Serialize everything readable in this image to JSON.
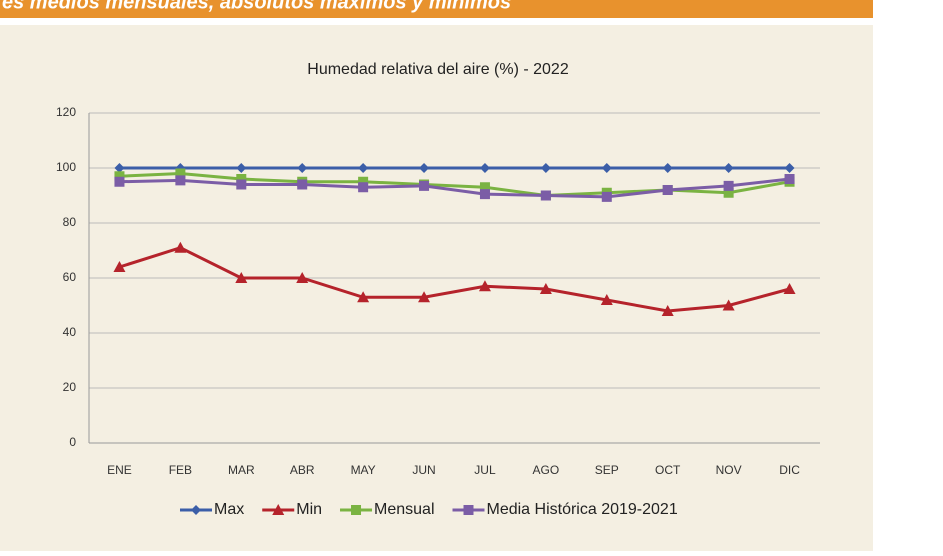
{
  "header": {
    "title": "es medios mensuales, absolutos máximos y mínimos"
  },
  "chart_data": {
    "type": "line",
    "title": "Humedad relativa del aire (%) - 2022",
    "categories": [
      "ENE",
      "FEB",
      "MAR",
      "ABR",
      "MAY",
      "JUN",
      "JUL",
      "AGO",
      "SEP",
      "OCT",
      "NOV",
      "DIC"
    ],
    "series": [
      {
        "name": "Max",
        "color": "#3b5ea8",
        "marker": "diamond",
        "values": [
          100,
          100,
          100,
          100,
          100,
          100,
          100,
          100,
          100,
          100,
          100,
          100
        ]
      },
      {
        "name": "Min",
        "color": "#b5232b",
        "marker": "triangle",
        "values": [
          64,
          71,
          60,
          60,
          53,
          53,
          57,
          56,
          52,
          48,
          50,
          56
        ]
      },
      {
        "name": "Mensual",
        "color": "#7ab342",
        "marker": "square",
        "values": [
          97,
          98,
          96,
          95,
          95,
          94,
          93,
          90,
          91,
          92,
          91,
          95
        ]
      },
      {
        "name": "Media Histórica 2019-2021",
        "color": "#7b5da6",
        "marker": "square",
        "values": [
          95,
          95.5,
          94,
          94,
          93,
          93.5,
          90.5,
          90,
          89.5,
          92,
          93.5,
          96
        ]
      }
    ],
    "ylim": [
      0,
      120
    ],
    "yticks": [
      0,
      20,
      40,
      60,
      80,
      100,
      120
    ],
    "grid": true,
    "legend": "bottom"
  }
}
